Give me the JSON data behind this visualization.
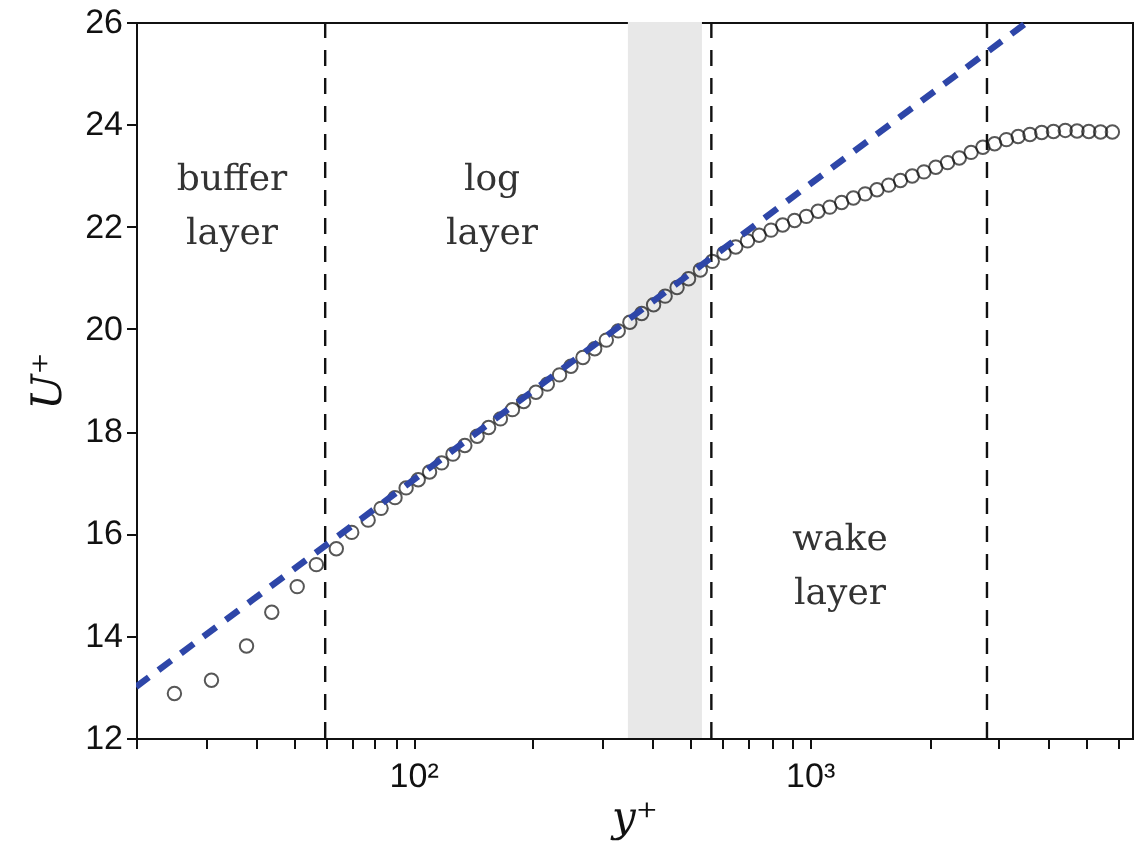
{
  "chart_data": {
    "type": "scatter",
    "xlabel": "y⁺",
    "ylabel": "U⁺",
    "log": "x",
    "xlim": [
      20,
      6500
    ],
    "ylim": [
      12,
      26
    ],
    "xticks": [
      {
        "value": 20,
        "label": null
      },
      {
        "value": 30,
        "label": null
      },
      {
        "value": 40,
        "label": null
      },
      {
        "value": 50,
        "label": null
      },
      {
        "value": 60,
        "label": null
      },
      {
        "value": 70,
        "label": null
      },
      {
        "value": 80,
        "label": null
      },
      {
        "value": 90,
        "label": null
      },
      {
        "value": 100,
        "label": "10²"
      },
      {
        "value": 200,
        "label": null
      },
      {
        "value": 300,
        "label": null
      },
      {
        "value": 400,
        "label": null
      },
      {
        "value": 500,
        "label": null
      },
      {
        "value": 600,
        "label": null
      },
      {
        "value": 700,
        "label": null
      },
      {
        "value": 800,
        "label": null
      },
      {
        "value": 900,
        "label": null
      },
      {
        "value": 1000,
        "label": "10³"
      },
      {
        "value": 2000,
        "label": null
      },
      {
        "value": 3000,
        "label": null
      },
      {
        "value": 4000,
        "label": null
      },
      {
        "value": 5000,
        "label": null
      },
      {
        "value": 6000,
        "label": null
      }
    ],
    "yticks": [
      12,
      14,
      16,
      18,
      20,
      22,
      24,
      26
    ],
    "grid": false,
    "series": [
      {
        "marker": "circle",
        "color": "#111111",
        "x": [
          25,
          31,
          38,
          44,
          51,
          57,
          64,
          70,
          77,
          83,
          90,
          96,
          103,
          110,
          118,
          126,
          135,
          145,
          155,
          166,
          178,
          190,
          204,
          218,
          234,
          250,
          268,
          287,
          307,
          329,
          352,
          377,
          404,
          432,
          463,
          495,
          530,
          568,
          608,
          651,
          697,
          746,
          799,
          855,
          916,
          981,
          1050,
          1124,
          1204,
          1289,
          1380,
          1478,
          1582,
          1694,
          1814,
          1942,
          2080,
          2227,
          2384,
          2553,
          2734,
          2927,
          3134,
          3356,
          3594,
          3848,
          4120,
          4412,
          4724,
          5058,
          5416,
          5800
        ],
        "values": [
          12.87,
          13.13,
          13.8,
          14.46,
          14.96,
          15.39,
          15.7,
          16.02,
          16.26,
          16.49,
          16.7,
          16.89,
          17.05,
          17.2,
          17.38,
          17.55,
          17.72,
          17.9,
          18.07,
          18.24,
          18.42,
          18.58,
          18.76,
          18.92,
          19.1,
          19.27,
          19.44,
          19.61,
          19.78,
          19.96,
          20.13,
          20.3,
          20.47,
          20.64,
          20.81,
          20.98,
          21.15,
          21.32,
          21.48,
          21.6,
          21.72,
          21.83,
          21.93,
          22.03,
          22.12,
          22.2,
          22.3,
          22.38,
          22.47,
          22.56,
          22.64,
          22.72,
          22.81,
          22.9,
          22.99,
          23.07,
          23.16,
          23.25,
          23.34,
          23.45,
          23.55,
          23.62,
          23.7,
          23.76,
          23.8,
          23.84,
          23.86,
          23.88,
          23.87,
          23.86,
          23.85,
          23.85
        ]
      },
      {
        "type": "line",
        "line_style": "dashed",
        "color": "#2e46a8",
        "x": [
          20,
          3540
        ],
        "values": [
          13,
          26
        ]
      }
    ],
    "ref_lines": [
      {
        "axis": "x",
        "value": 60,
        "color": "#111111",
        "line_style": "dashed"
      },
      {
        "axis": "x",
        "value": 565,
        "color": "#111111",
        "line_style": "dashed"
      },
      {
        "axis": "x",
        "value": 2800,
        "color": "#111111",
        "line_style": "dashed"
      }
    ],
    "bands": [
      {
        "axis": "x",
        "from": 348,
        "to": 535,
        "color": "#e8e8e8"
      }
    ],
    "annotations": [
      "buffer layer",
      "log layer",
      "wake layer"
    ]
  }
}
